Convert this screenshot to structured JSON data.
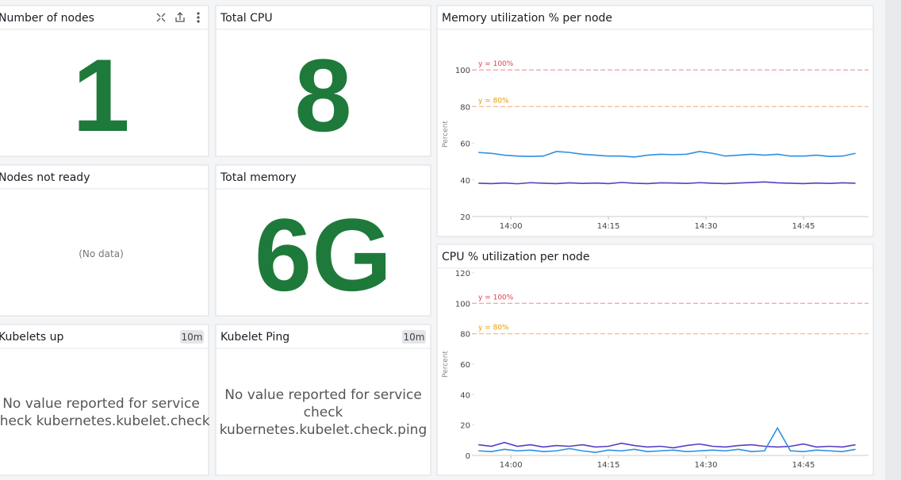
{
  "widgets": [
    {
      "title": "Number of nodes",
      "value": "1"
    },
    {
      "title": "Total CPU",
      "value": "8"
    },
    {
      "title": "Nodes not ready",
      "message_lines": [
        "(No data)"
      ]
    },
    {
      "title": "Total memory",
      "value": "6G"
    },
    {
      "title": "Kubelets up",
      "badge": "10m",
      "message_lines": [
        "No value reported for service",
        "check kubernetes.kubelet.check"
      ]
    },
    {
      "title": "Kubelet Ping",
      "badge": "10m",
      "message_lines": [
        "No value reported for service",
        "check",
        "kubernetes.kubelet.check.ping"
      ]
    }
  ],
  "chart_data": [
    {
      "type": "line",
      "title": "Memory utilization % per node",
      "y_label": "Percent",
      "x": [
        "13:55",
        "13:57",
        "13:59",
        "14:01",
        "14:03",
        "14:05",
        "14:07",
        "14:09",
        "14:11",
        "14:13",
        "14:15",
        "14:17",
        "14:19",
        "14:21",
        "14:23",
        "14:25",
        "14:27",
        "14:29",
        "14:31",
        "14:33",
        "14:35",
        "14:37",
        "14:39",
        "14:41",
        "14:43",
        "14:45",
        "14:47",
        "14:49",
        "14:51",
        "14:53"
      ],
      "xlim": [
        "13:54",
        "14:55"
      ],
      "xticks": [
        "14:00",
        "14:15",
        "14:30",
        "14:45"
      ],
      "ylim": [
        20,
        110
      ],
      "yticks": [
        20,
        40,
        60,
        80,
        100
      ],
      "reference_lines": [
        {
          "value": 100,
          "label": "y = 100%",
          "color": "#f29aa0",
          "label_color": "#e0424f"
        },
        {
          "value": 80,
          "label": "y = 80%",
          "color": "#f5b48a",
          "label_color": "#e59b00"
        }
      ],
      "series": [
        {
          "color": "#2f8fe0",
          "values": [
            55,
            54.5,
            53.5,
            53,
            52.8,
            53,
            55.5,
            55,
            54,
            53.5,
            53,
            53,
            52.5,
            53.5,
            54,
            53.8,
            54,
            55.5,
            54.5,
            53,
            53.5,
            54,
            53.5,
            54,
            53,
            53,
            53.5,
            52.8,
            53,
            54.5
          ]
        },
        {
          "color": "#5b3cc4",
          "values": [
            38.2,
            38,
            38.3,
            37.9,
            38.5,
            38.2,
            38,
            38.4,
            38.1,
            38.3,
            38,
            38.6,
            38.2,
            38,
            38.4,
            38.3,
            38.1,
            38.5,
            38.2,
            38,
            38.3,
            38.6,
            38.9,
            38.4,
            38.2,
            38,
            38.3,
            38.1,
            38.4,
            38.2
          ]
        }
      ]
    },
    {
      "type": "line",
      "title": "CPU % utilization per node",
      "y_label": "Percent",
      "x": [
        "13:55",
        "13:57",
        "13:59",
        "14:01",
        "14:03",
        "14:05",
        "14:07",
        "14:09",
        "14:11",
        "14:13",
        "14:15",
        "14:17",
        "14:19",
        "14:21",
        "14:23",
        "14:25",
        "14:27",
        "14:29",
        "14:31",
        "14:33",
        "14:35",
        "14:37",
        "14:39",
        "14:41",
        "14:43",
        "14:45",
        "14:47",
        "14:49",
        "14:51",
        "14:53"
      ],
      "xlim": [
        "13:54",
        "14:55"
      ],
      "xticks": [
        "14:00",
        "14:15",
        "14:30",
        "14:45"
      ],
      "ylim": [
        0,
        120
      ],
      "yticks": [
        0,
        20,
        40,
        60,
        80,
        100,
        120
      ],
      "reference_lines": [
        {
          "value": 100,
          "label": "y = 100%",
          "color": "#f29aa0",
          "label_color": "#e0424f"
        },
        {
          "value": 80,
          "label": "y = 80%",
          "color": "#f5b48a",
          "label_color": "#e59b00"
        }
      ],
      "series": [
        {
          "color": "#5b3cc4",
          "values": [
            7,
            6,
            8.5,
            6,
            7,
            5.5,
            6.5,
            6,
            7,
            5.5,
            6,
            8,
            6.5,
            5.5,
            6,
            5,
            6.5,
            7.5,
            6,
            5.5,
            6.5,
            7,
            6,
            5.5,
            6,
            7.5,
            5.5,
            6,
            5.5,
            7
          ]
        },
        {
          "color": "#2f8fe0",
          "values": [
            3,
            2.5,
            4,
            3,
            3.5,
            2.5,
            3,
            4.5,
            3,
            2,
            3.5,
            3,
            4,
            2.5,
            3,
            3.5,
            2.5,
            3,
            3.5,
            3,
            4,
            2.5,
            3,
            18,
            3,
            2.5,
            3.5,
            3,
            2.5,
            4
          ]
        }
      ]
    }
  ]
}
